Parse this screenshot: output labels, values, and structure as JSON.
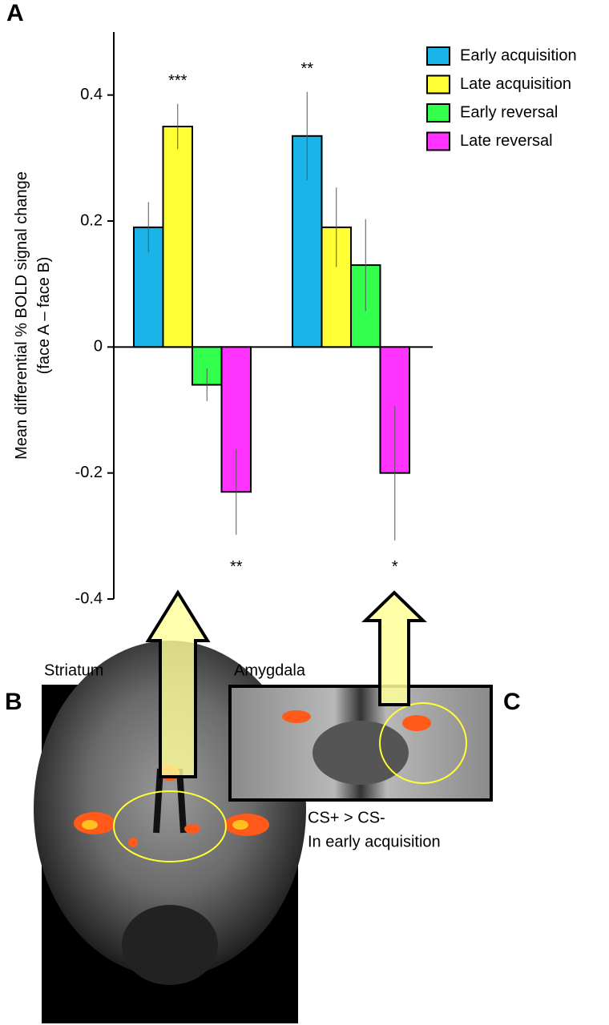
{
  "chart_data": {
    "type": "bar",
    "y_label": [
      "Mean differential % BOLD signal change",
      "(face A – face B)"
    ],
    "categories": [
      null,
      null
    ],
    "series": [
      {
        "name": "Early acquisition",
        "color": "#1ab4e8",
        "values": [
          0.19,
          0.335
        ],
        "errors": [
          0.04,
          0.07
        ],
        "significance": [
          null,
          "**"
        ]
      },
      {
        "name": "Late acquisition",
        "color": "#ffff33",
        "values": [
          0.35,
          0.19
        ],
        "errors": [
          0.036,
          0.063
        ],
        "significance": [
          "***",
          null
        ]
      },
      {
        "name": "Early reversal",
        "color": "#33ff4d",
        "values": [
          -0.06,
          0.13
        ],
        "errors": [
          0.026,
          0.073
        ],
        "significance": [
          null,
          null
        ]
      },
      {
        "name": "Late reversal",
        "color": "#ff33ff",
        "values": [
          -0.23,
          -0.2
        ],
        "errors": [
          0.068,
          0.107
        ],
        "significance": [
          "**",
          "*"
        ]
      }
    ],
    "ylim": [
      -0.4,
      0.5
    ],
    "yticks": [
      -0.4,
      -0.2,
      0,
      0.2,
      0.4
    ],
    "legend": "upper right"
  },
  "figure": {
    "panel_labels": [
      "A",
      "B",
      "C"
    ],
    "striatum": "Striatum",
    "amygdala": "Amygdala",
    "caption": [
      "CS+ > CS-",
      "In early acquisition"
    ]
  }
}
